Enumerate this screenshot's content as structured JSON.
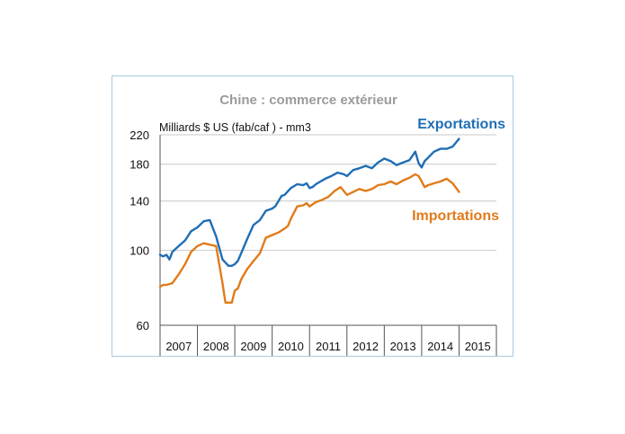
{
  "chart_data": {
    "type": "line",
    "title": "Chine : commerce extérieur",
    "ylabel": "Milliards $ US (fab/caf ) - mm3",
    "xlabel": "",
    "y_scale": "log",
    "ylim": [
      60,
      220
    ],
    "y_ticks": [
      60,
      100,
      140,
      180,
      220
    ],
    "xlim": [
      2007,
      2016
    ],
    "x_tick_labels": [
      "2007",
      "2008",
      "2009",
      "2010",
      "2011",
      "2012",
      "2013",
      "2014",
      "2015"
    ],
    "grid": true,
    "series": [
      {
        "name": "Exportations",
        "color": "#1f6eb5",
        "x": [
          2007.0,
          2007.08,
          2007.17,
          2007.25,
          2007.33,
          2007.5,
          2007.67,
          2007.83,
          2008.0,
          2008.17,
          2008.33,
          2008.5,
          2008.67,
          2008.83,
          2008.92,
          2009.0,
          2009.08,
          2009.17,
          2009.33,
          2009.5,
          2009.67,
          2009.83,
          2010.0,
          2010.08,
          2010.17,
          2010.25,
          2010.33,
          2010.5,
          2010.67,
          2010.83,
          2010.92,
          2011.0,
          2011.08,
          2011.17,
          2011.25,
          2011.42,
          2011.58,
          2011.75,
          2011.92,
          2012.0,
          2012.17,
          2012.33,
          2012.5,
          2012.67,
          2012.83,
          2013.0,
          2013.17,
          2013.33,
          2013.5,
          2013.67,
          2013.83,
          2013.92,
          2014.0,
          2014.08,
          2014.17,
          2014.33,
          2014.5,
          2014.67,
          2014.83,
          2015.0
        ],
        "values": [
          97,
          96,
          97,
          94,
          99,
          103,
          107,
          114,
          117,
          122,
          123,
          110,
          94,
          90,
          90,
          91,
          93,
          98,
          108,
          119,
          123,
          131,
          133,
          135,
          140,
          145,
          146,
          153,
          157,
          156,
          158,
          153,
          154,
          157,
          159,
          163,
          166,
          170,
          168,
          166,
          173,
          175,
          178,
          175,
          182,
          187,
          184,
          179,
          182,
          185,
          196,
          181,
          176,
          184,
          188,
          196,
          200,
          200,
          203,
          214
        ]
      },
      {
        "name": "Importations",
        "color": "#e07b1a",
        "x": [
          2007.0,
          2007.08,
          2007.17,
          2007.33,
          2007.5,
          2007.67,
          2007.83,
          2008.0,
          2008.17,
          2008.33,
          2008.5,
          2008.67,
          2008.75,
          2008.83,
          2008.92,
          2009.0,
          2009.08,
          2009.17,
          2009.33,
          2009.5,
          2009.67,
          2009.83,
          2010.0,
          2010.17,
          2010.33,
          2010.42,
          2010.5,
          2010.67,
          2010.83,
          2010.92,
          2011.0,
          2011.17,
          2011.33,
          2011.5,
          2011.67,
          2011.83,
          2012.0,
          2012.17,
          2012.33,
          2012.5,
          2012.67,
          2012.83,
          2013.0,
          2013.17,
          2013.33,
          2013.5,
          2013.67,
          2013.83,
          2013.92,
          2014.0,
          2014.08,
          2014.17,
          2014.33,
          2014.5,
          2014.67,
          2014.83,
          2015.0
        ],
        "values": [
          78,
          79,
          79,
          80,
          85,
          91,
          99,
          103,
          105,
          104,
          103,
          80,
          70,
          70,
          70,
          76,
          77,
          82,
          88,
          93,
          98,
          109,
          111,
          113,
          116,
          118,
          124,
          135,
          136,
          138,
          135,
          139,
          141,
          144,
          150,
          154,
          146,
          149,
          152,
          150,
          152,
          156,
          157,
          160,
          157,
          161,
          164,
          168,
          166,
          160,
          154,
          156,
          158,
          160,
          163,
          158,
          149
        ]
      }
    ],
    "annotations": [
      "Exportations",
      "Importations"
    ]
  }
}
